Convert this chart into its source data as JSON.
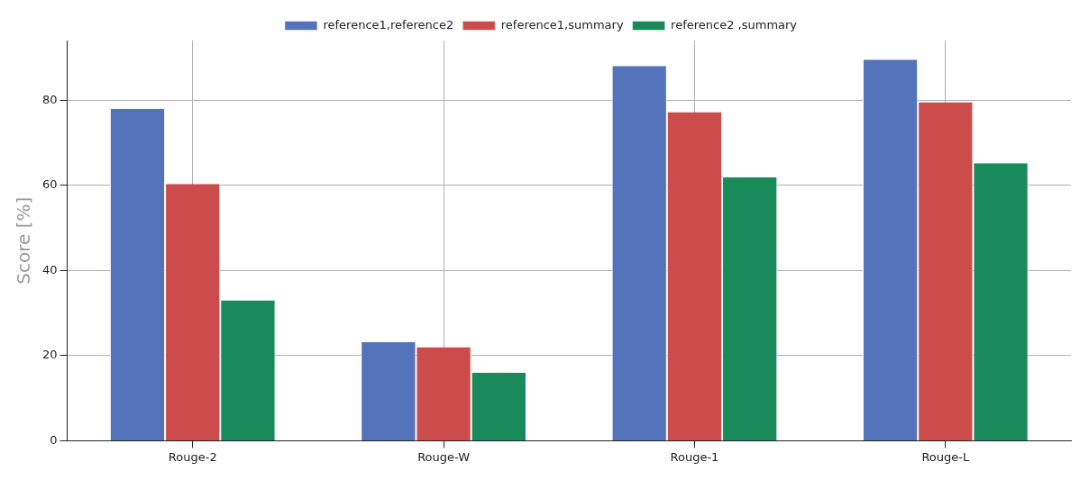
{
  "chart_data": {
    "type": "bar",
    "ylabel": "Score [%]",
    "categories": [
      "Rouge-2",
      "Rouge-W",
      "Rouge-1",
      "Rouge-L"
    ],
    "series": [
      {
        "name": "reference1,reference2",
        "color": "#5573bb",
        "values": [
          78,
          23.2,
          88,
          89.5
        ]
      },
      {
        "name": "reference1,summary",
        "color": "#cc4c4c",
        "values": [
          60.3,
          22,
          77.2,
          79.5
        ]
      },
      {
        "name": "reference2 ,summary",
        "color": "#198a5a",
        "values": [
          33,
          16,
          61.9,
          65.2
        ]
      }
    ],
    "ylim": [
      0,
      94
    ],
    "yticks": [
      0,
      20,
      40,
      60,
      80
    ],
    "grid": true,
    "legend": "top"
  }
}
